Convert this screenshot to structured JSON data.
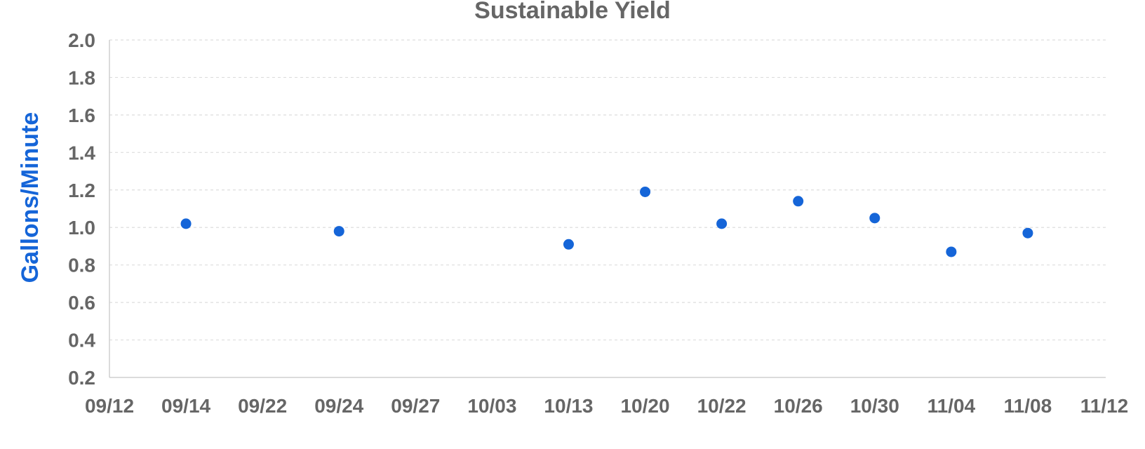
{
  "chart_data": {
    "type": "scatter",
    "title": "Sustainable Yield",
    "xlabel": "",
    "ylabel": "Gallons/Minute",
    "x_tick_labels": [
      "09/12",
      "09/14",
      "09/22",
      "09/24",
      "09/27",
      "10/03",
      "10/13",
      "10/20",
      "10/22",
      "10/26",
      "10/30",
      "11/04",
      "11/08",
      "11/12"
    ],
    "y_ticks": [
      0.2,
      0.4,
      0.6,
      0.8,
      1.0,
      1.2,
      1.4,
      1.6,
      1.8,
      2.0
    ],
    "y_tick_labels": [
      "0.2",
      "0.4",
      "0.6",
      "0.8",
      "1.0",
      "1.2",
      "1.4",
      "1.6",
      "1.8",
      "2.0"
    ],
    "ylim": [
      0.2,
      2.0
    ],
    "grid": true,
    "points": [
      {
        "x": "09/14",
        "y": 1.02
      },
      {
        "x": "09/24",
        "y": 0.98
      },
      {
        "x": "10/13",
        "y": 0.91
      },
      {
        "x": "10/20",
        "y": 1.19
      },
      {
        "x": "10/22",
        "y": 1.02
      },
      {
        "x": "10/26",
        "y": 1.14
      },
      {
        "x": "10/30",
        "y": 1.05
      },
      {
        "x": "11/04",
        "y": 0.87
      },
      {
        "x": "11/08",
        "y": 0.97
      }
    ],
    "colors": {
      "marker": "#1565d8",
      "ylabel": "#1565d8",
      "text": "#666666",
      "grid": "#dddddd",
      "axis": "#cfcfcf"
    }
  }
}
